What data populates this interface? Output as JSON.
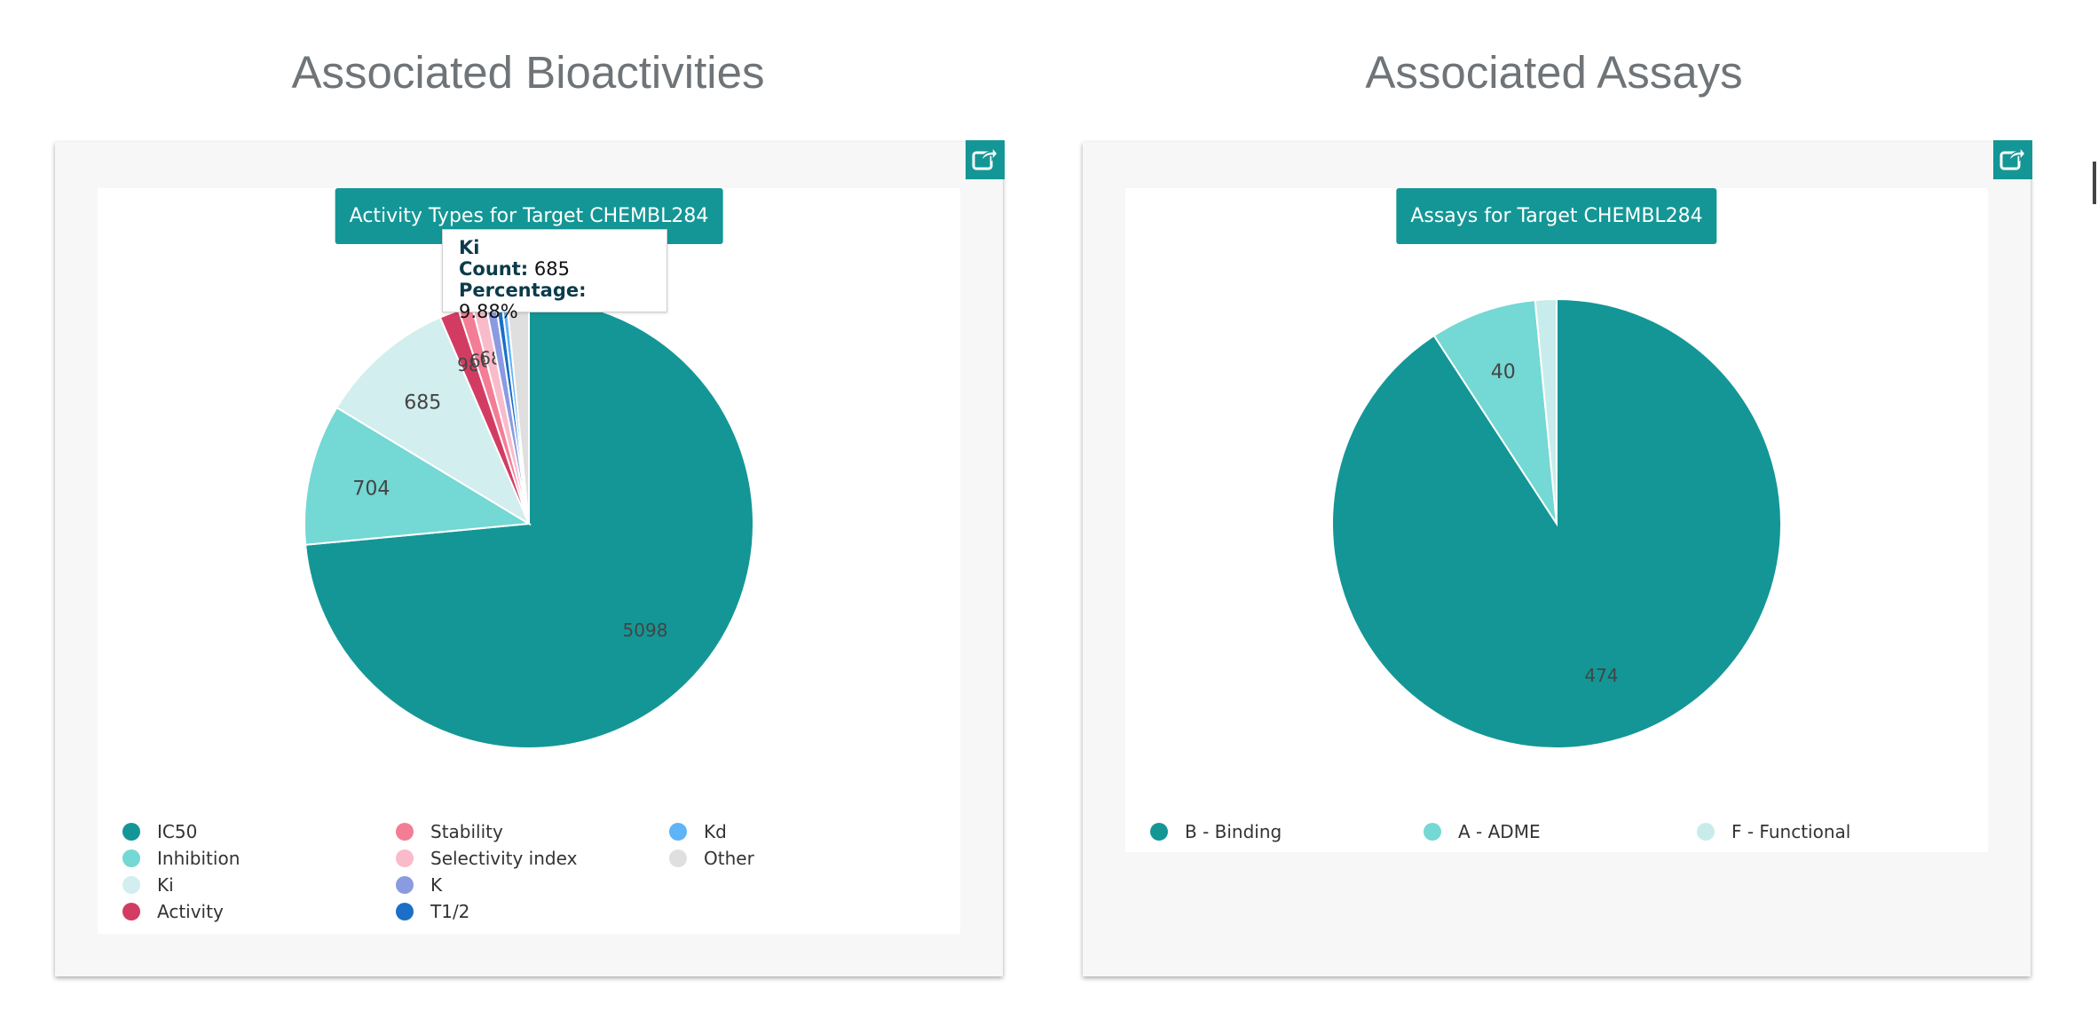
{
  "sections": {
    "bioactivities_title": "Associated Bioactivities",
    "assays_title": "Associated Assays"
  },
  "share_icon": "share-arrow-icon",
  "tooltip": {
    "name": "Ki",
    "count_label": "Count:",
    "count_value": "685",
    "percentage_label": "Percentage:",
    "percentage_value": "9.88%"
  },
  "colors": {
    "accent": "#149696"
  },
  "chart_data": [
    {
      "type": "pie",
      "title": "Activity Types for Target CHEMBL284",
      "slices": [
        {
          "name": "IC50",
          "value": 5098,
          "color": "#149696",
          "label": "5098"
        },
        {
          "name": "Inhibition",
          "value": 704,
          "color": "#74d8d4",
          "label": "704"
        },
        {
          "name": "Ki",
          "value": 685,
          "color": "#d2eeee",
          "label": "685"
        },
        {
          "name": "Activity",
          "value": 98,
          "color": "#d33c62",
          "label": "98"
        },
        {
          "name": "Stability",
          "value": 68,
          "color": "#f47d96",
          "label": "68"
        },
        {
          "name": "Selectivity index",
          "value": 68,
          "color": "#f9bbca",
          "label": "68"
        },
        {
          "name": "K",
          "value": 50,
          "color": "#8b9be2",
          "label": ""
        },
        {
          "name": "T1/2",
          "value": 30,
          "color": "#1b6fc7",
          "label": ""
        },
        {
          "name": "Kd",
          "value": 25,
          "color": "#5fb3f7",
          "label": ""
        },
        {
          "name": "Other",
          "value": 110,
          "color": "#dfdfdf",
          "label": ""
        }
      ],
      "legend": {
        "position": "bottom",
        "columns": 3
      }
    },
    {
      "type": "pie",
      "title": "Assays for Target CHEMBL284",
      "slices": [
        {
          "name": "B - Binding",
          "value": 474,
          "color": "#149696",
          "label": "474"
        },
        {
          "name": "A - ADME",
          "value": 40,
          "color": "#74d8d4",
          "label": "40"
        },
        {
          "name": "F - Functional",
          "value": 8,
          "color": "#c8ecec",
          "label": ""
        }
      ],
      "legend": {
        "position": "bottom",
        "columns": 3
      }
    }
  ]
}
